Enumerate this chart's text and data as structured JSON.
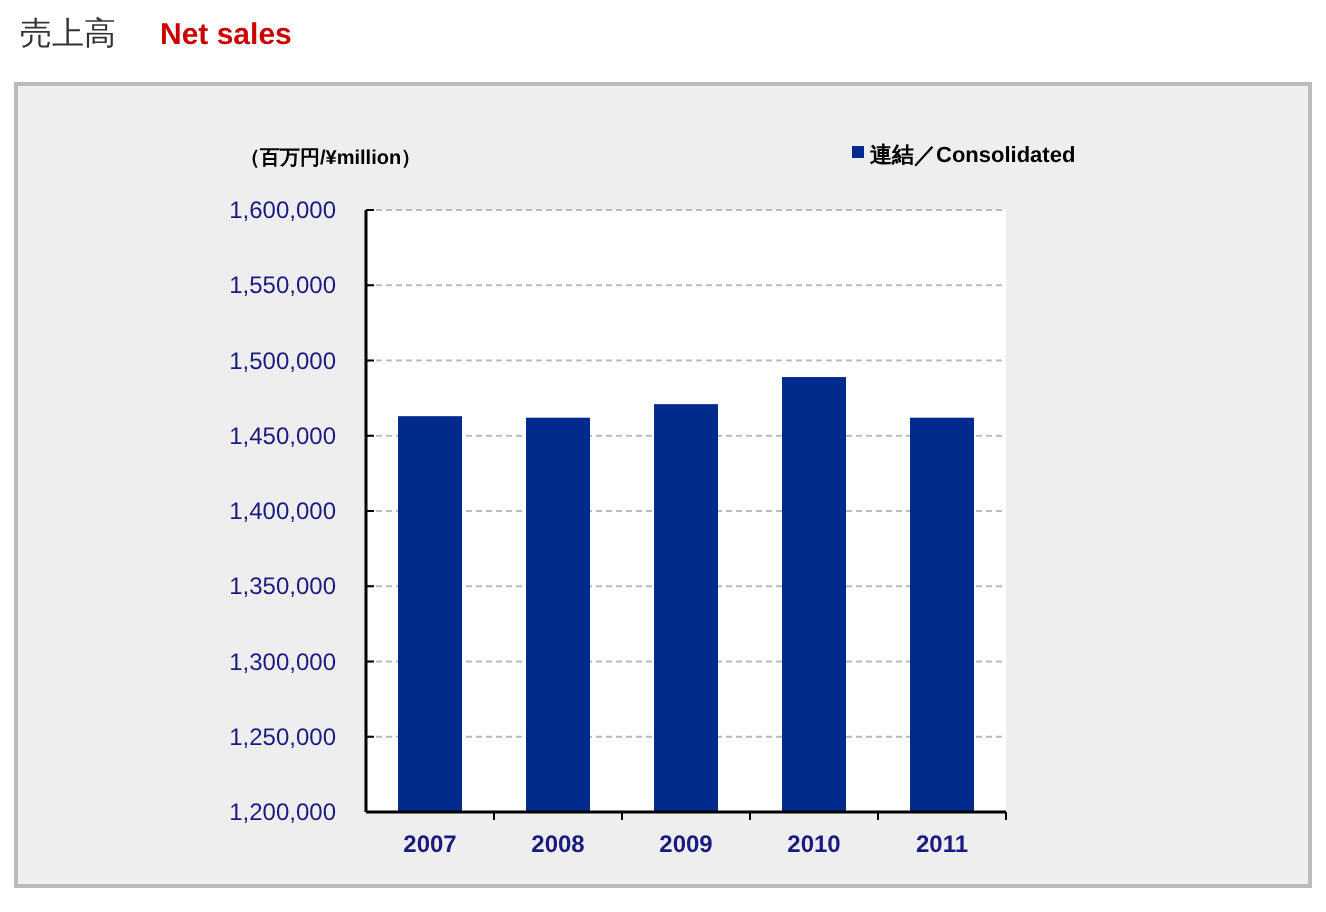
{
  "chart_data": {
    "type": "bar",
    "title": "売上高",
    "subtitle": "Net sales",
    "ylabel": "（百万円/¥million）",
    "categories": [
      "2007",
      "2008",
      "2009",
      "2010",
      "2011"
    ],
    "series": [
      {
        "name": "連結／Consolidated",
        "color": "#002b8c",
        "values": [
          1463000,
          1462000,
          1471000,
          1489000,
          1462000
        ]
      }
    ],
    "ylim": [
      1200000,
      1600000
    ],
    "yticks": [
      {
        "value": 1200000,
        "label": "1,200,000"
      },
      {
        "value": 1250000,
        "label": "1,250,000"
      },
      {
        "value": 1300000,
        "label": "1,300,000"
      },
      {
        "value": 1350000,
        "label": "1,350,000"
      },
      {
        "value": 1400000,
        "label": "1,400,000"
      },
      {
        "value": 1450000,
        "label": "1,450,000"
      },
      {
        "value": 1500000,
        "label": "1,500,000"
      },
      {
        "value": 1550000,
        "label": "1,550,000"
      },
      {
        "value": 1600000,
        "label": "1,600,000"
      }
    ],
    "grid": "y",
    "legend": "top right"
  }
}
